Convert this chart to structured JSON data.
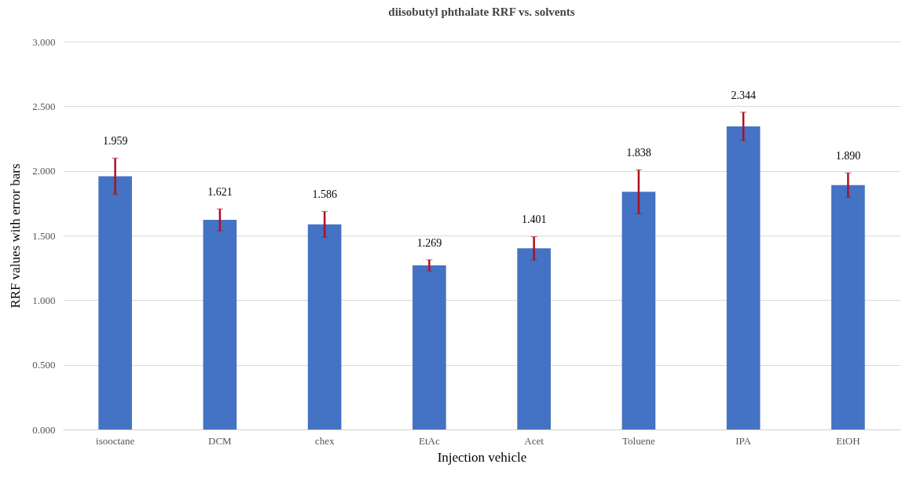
{
  "chart_data": {
    "type": "bar",
    "title": "diisobutyl  phthalate RRF vs. solvents",
    "xlabel": "Injection  vehicle",
    "ylabel": "RRF values  with  error bars",
    "categories": [
      "isooctane",
      "DCM",
      "chex",
      "EtAc",
      "Acet",
      "Toluene",
      "IPA",
      "EtOH"
    ],
    "values": [
      1.959,
      1.621,
      1.586,
      1.269,
      1.401,
      1.838,
      2.344,
      1.89
    ],
    "value_labels": [
      "1.959",
      "1.621",
      "1.586",
      "1.269",
      "1.401",
      "1.838",
      "2.344",
      "1.890"
    ],
    "errors": [
      0.14,
      0.085,
      0.1,
      0.043,
      0.09,
      0.17,
      0.11,
      0.095
    ],
    "color": "#4472c4",
    "ylim": [
      0,
      3
    ],
    "yticks": [
      {
        "value": 0,
        "label": "0.000"
      },
      {
        "value": 0.5,
        "label": "0.500"
      },
      {
        "value": 1,
        "label": "1.000"
      },
      {
        "value": 1.5,
        "label": "1.500"
      },
      {
        "value": 2,
        "label": "2.000"
      },
      {
        "value": 2.5,
        "label": "2.500"
      },
      {
        "value": 3,
        "label": "3.000"
      }
    ],
    "grid": "y"
  }
}
